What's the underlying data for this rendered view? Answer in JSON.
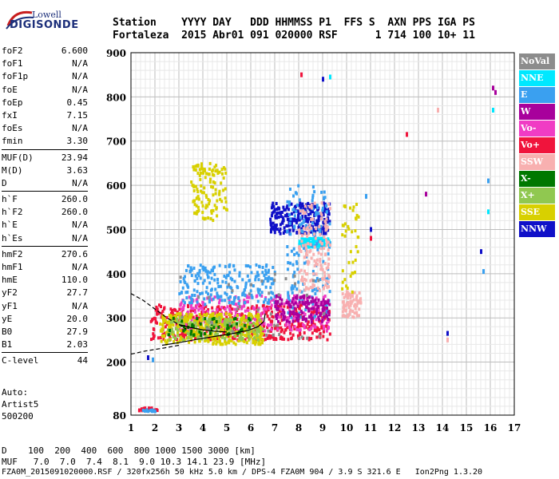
{
  "logo": {
    "line1": "Lowell",
    "line2": "DIGISONDE"
  },
  "header": {
    "row1": "Station    YYYY DAY   DDD HHMMSS P1  FFS S  AXN PPS IGA PS",
    "row2": "Fortaleza  2015 Abr01 091 020000 RSF      1 714 100 10+ 11"
  },
  "params": [
    {
      "key": "foF2",
      "value": "6.600"
    },
    {
      "key": "foF1",
      "value": "N/A"
    },
    {
      "key": "foF1p",
      "value": "N/A"
    },
    {
      "key": "foE",
      "value": "N/A"
    },
    {
      "key": "foEp",
      "value": "0.45"
    },
    {
      "key": "fxI",
      "value": "7.15"
    },
    {
      "key": "foEs",
      "value": "N/A"
    },
    {
      "key": "fmin",
      "value": "3.30"
    },
    {
      "sep": true
    },
    {
      "key": "MUF(D)",
      "value": "23.94"
    },
    {
      "key": "M(D)",
      "value": "3.63"
    },
    {
      "key": "D",
      "value": "N/A"
    },
    {
      "sep": true
    },
    {
      "key": "h`F",
      "value": "260.0"
    },
    {
      "key": "h`F2",
      "value": "260.0"
    },
    {
      "key": "h`E",
      "value": "N/A"
    },
    {
      "key": "h`Es",
      "value": "N/A"
    },
    {
      "sep": true
    },
    {
      "key": "hmF2",
      "value": "270.6"
    },
    {
      "key": "hmF1",
      "value": "N/A"
    },
    {
      "key": "hmE",
      "value": "110.0"
    },
    {
      "key": "yF2",
      "value": "27.7"
    },
    {
      "key": "yF1",
      "value": "N/A"
    },
    {
      "key": "yE",
      "value": "20.0"
    },
    {
      "key": "B0",
      "value": "27.9"
    },
    {
      "key": "B1",
      "value": "2.03"
    },
    {
      "sep": true
    },
    {
      "key": "C-level",
      "value": "44"
    }
  ],
  "auto": {
    "line1": "Auto:",
    "line2": "Artist5",
    "line3": "500200"
  },
  "legend": [
    {
      "label": "NoVal",
      "color": "#8c8c8c"
    },
    {
      "label": "NNE",
      "color": "#00e8ff"
    },
    {
      "label": "E",
      "color": "#3aa0f0"
    },
    {
      "label": "W",
      "color": "#a8009c"
    },
    {
      "label": "Vo-",
      "color": "#f03cc4"
    },
    {
      "label": "Vo+",
      "color": "#f0143c"
    },
    {
      "label": "SSW",
      "color": "#f8b0b0"
    },
    {
      "label": "X-",
      "color": "#007800"
    },
    {
      "label": "X+",
      "color": "#90c850"
    },
    {
      "label": "SSE",
      "color": "#d8d000"
    },
    {
      "label": "NNW",
      "color": "#1010c8"
    }
  ],
  "footer": {
    "d_row": "D    100  200  400  600  800 1000 1500 3000 [km]",
    "muf_row": "MUF   7.0  7.0  7.4  8.1  9.0 10.3 14.1 23.9 [MHz]",
    "file_row": "FZA0M_2015091020000.RSF / 320fx256h 50 kHz 5.0 km / DPS-4 FZA0M 904 / 3.9 S 321.6 E   Ion2Png 1.3.20"
  },
  "chart_data": {
    "type": "scatter",
    "xlim": [
      1,
      17
    ],
    "ylim": [
      80,
      900
    ],
    "xticks": [
      1,
      2,
      3,
      4,
      5,
      6,
      7,
      8,
      9,
      10,
      11,
      12,
      13,
      14,
      15,
      16,
      17
    ],
    "yticks": [
      80,
      200,
      300,
      400,
      500,
      600,
      700,
      800,
      900
    ],
    "grid": true,
    "regions": [
      {
        "name": "NNE",
        "x": [
          8.0,
          9.3
        ],
        "y": [
          460,
          480
        ],
        "n": 140
      },
      {
        "name": "NNW",
        "x": [
          6.8,
          9.3
        ],
        "y": [
          490,
          560
        ],
        "n": 260
      },
      {
        "name": "Vo+",
        "x": [
          1.8,
          9.3
        ],
        "y": [
          250,
          330
        ],
        "n": 520
      },
      {
        "name": "Vo-",
        "x": [
          3.0,
          9.3
        ],
        "y": [
          270,
          350
        ],
        "n": 260
      },
      {
        "name": "SSE",
        "x": [
          2.2,
          6.5
        ],
        "y": [
          240,
          310
        ],
        "n": 360
      },
      {
        "name": "SSE",
        "x": [
          3.5,
          5.0
        ],
        "y": [
          520,
          650
        ],
        "n": 120
      },
      {
        "name": "E",
        "x": [
          3.0,
          7.0
        ],
        "y": [
          330,
          420
        ],
        "n": 220
      },
      {
        "name": "E",
        "x": [
          7.5,
          9.3
        ],
        "y": [
          300,
          600
        ],
        "n": 160
      },
      {
        "name": "SSW",
        "x": [
          8.0,
          9.3
        ],
        "y": [
          360,
          560
        ],
        "n": 140
      },
      {
        "name": "SSW",
        "x": [
          9.8,
          10.6
        ],
        "y": [
          300,
          360
        ],
        "n": 80
      },
      {
        "name": "X+",
        "x": [
          2.5,
          6.5
        ],
        "y": [
          250,
          300
        ],
        "n": 120
      },
      {
        "name": "X-",
        "x": [
          2.5,
          6.0
        ],
        "y": [
          260,
          300
        ],
        "n": 50
      },
      {
        "name": "W",
        "x": [
          7.0,
          9.3
        ],
        "y": [
          290,
          350
        ],
        "n": 140
      },
      {
        "name": "NoVal",
        "x": [
          3.0,
          9.5
        ],
        "y": [
          250,
          400
        ],
        "n": 40
      },
      {
        "name": "SSE",
        "x": [
          9.8,
          10.5
        ],
        "y": [
          350,
          570
        ],
        "n": 40
      },
      {
        "name": "Vo+",
        "x": [
          1.3,
          2.1
        ],
        "y": [
          90,
          96
        ],
        "n": 25
      },
      {
        "name": "E",
        "x": [
          1.4,
          2.0
        ],
        "y": [
          88,
          92
        ],
        "n": 15
      }
    ],
    "sparse": [
      {
        "name": "NNW",
        "x": 15.6,
        "y": 450
      },
      {
        "name": "E",
        "x": 15.7,
        "y": 405
      },
      {
        "name": "NNE",
        "x": 15.9,
        "y": 540
      },
      {
        "name": "E",
        "x": 15.9,
        "y": 610
      },
      {
        "name": "W",
        "x": 16.1,
        "y": 820
      },
      {
        "name": "W",
        "x": 16.2,
        "y": 810
      },
      {
        "name": "NNE",
        "x": 16.1,
        "y": 770
      },
      {
        "name": "Vo+",
        "x": 12.5,
        "y": 715
      },
      {
        "name": "W",
        "x": 13.3,
        "y": 580
      },
      {
        "name": "SSW",
        "x": 13.8,
        "y": 770
      },
      {
        "name": "NNW",
        "x": 14.2,
        "y": 265
      },
      {
        "name": "SSW",
        "x": 14.2,
        "y": 250
      },
      {
        "name": "E",
        "x": 10.8,
        "y": 575
      },
      {
        "name": "Vo+",
        "x": 11.0,
        "y": 480
      },
      {
        "name": "NNW",
        "x": 11.0,
        "y": 500
      },
      {
        "name": "NNW",
        "x": 9.0,
        "y": 840
      },
      {
        "name": "Vo+",
        "x": 8.1,
        "y": 850
      },
      {
        "name": "NNE",
        "x": 9.3,
        "y": 845
      },
      {
        "name": "NNW",
        "x": 1.7,
        "y": 210
      },
      {
        "name": "E",
        "x": 1.9,
        "y": 205
      }
    ],
    "curves": [
      {
        "style": "dashed",
        "x": [
          1.0,
          1.5,
          2.0,
          2.5,
          3.0,
          3.3
        ],
        "y": [
          355,
          340,
          320,
          300,
          285,
          275
        ]
      },
      {
        "style": "dashed",
        "x": [
          1.0,
          1.6,
          2.4,
          3.0
        ],
        "y": [
          218,
          225,
          232,
          238
        ]
      },
      {
        "style": "solid",
        "x": [
          2.3,
          3.0,
          3.8,
          4.5,
          5.2,
          5.9,
          6.3,
          6.55,
          6.6
        ],
        "y": [
          238,
          244,
          252,
          258,
          264,
          272,
          280,
          292,
          310
        ]
      },
      {
        "style": "solid",
        "x": [
          3.0,
          3.5,
          4.0,
          4.5,
          5.0
        ],
        "y": [
          285,
          278,
          273,
          270,
          268
        ]
      }
    ]
  }
}
